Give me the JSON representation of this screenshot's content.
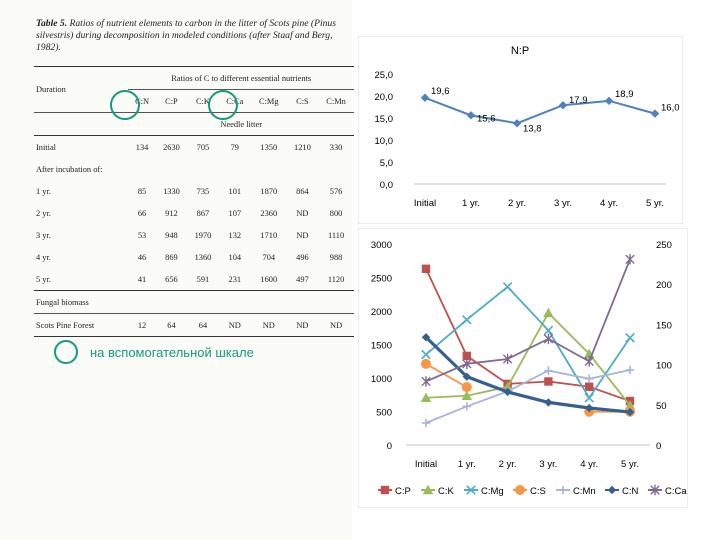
{
  "table": {
    "caption_label": "Table 5.",
    "caption_text": "Ratios of nutrient elements to carbon in the litter of Scots pine (Pinus silvestris) during decomposition in modeled conditions (after Staaf and Berg, 1982).",
    "duration_header": "Duration",
    "group_header": "Ratios of C to different essential nutrients",
    "columns": [
      "C:N",
      "C:P",
      "C:K",
      "C:Ca",
      "C:Mg",
      "C:S",
      "C:Mn"
    ],
    "section_needle": "Needle litter",
    "rows": [
      {
        "label": "Initial",
        "values": [
          "134",
          "2630",
          "705",
          "79",
          "1350",
          "1210",
          "330"
        ]
      },
      {
        "label": "After incubation of:",
        "values": []
      },
      {
        "label": "1 yr.",
        "values": [
          "85",
          "1330",
          "735",
          "101",
          "1870",
          "864",
          "576"
        ]
      },
      {
        "label": "2 yr.",
        "values": [
          "66",
          "912",
          "867",
          "107",
          "2360",
          "ND",
          "800"
        ]
      },
      {
        "label": "3 yr.",
        "values": [
          "53",
          "948",
          "1970",
          "132",
          "1710",
          "ND",
          "1110"
        ]
      },
      {
        "label": "4 yr.",
        "values": [
          "46",
          "869",
          "1360",
          "104",
          "704",
          "496",
          "988"
        ]
      },
      {
        "label": "5 yr.",
        "values": [
          "41",
          "656",
          "591",
          "231",
          "1600",
          "497",
          "1120"
        ]
      },
      {
        "label": "Fungal biomass",
        "values": []
      },
      {
        "label": "Scots Pine Forest",
        "values": [
          "12",
          "64",
          "64",
          "ND",
          "ND",
          "ND",
          "ND"
        ]
      }
    ],
    "note_text": "на вспомогательной шкале"
  },
  "colors": {
    "accent": "#129b7d"
  },
  "chart_data": [
    {
      "type": "line",
      "title": "N:P",
      "categories": [
        "Initial",
        "1 yr.",
        "2 yr.",
        "3 yr.",
        "4 yr.",
        "5 yr."
      ],
      "values": [
        19.6,
        15.6,
        13.8,
        17.9,
        18.9,
        16.0
      ],
      "data_labels": [
        "19,6",
        "15,6",
        "13,8",
        "17,9",
        "18,9",
        "16,0"
      ],
      "ylim": [
        0,
        25
      ],
      "yticks": [
        "0,0",
        "5,0",
        "10,0",
        "15,0",
        "20,0",
        "25,0"
      ],
      "color": "#4f81bd"
    },
    {
      "type": "line",
      "categories": [
        "Initial",
        "1 yr.",
        "2 yr.",
        "3 yr.",
        "4 yr.",
        "5 yr."
      ],
      "ylim_left": [
        0,
        3000
      ],
      "yticks_left": [
        "0",
        "500",
        "1000",
        "1500",
        "2000",
        "2500",
        "3000"
      ],
      "ylim_right": [
        0,
        250
      ],
      "yticks_right": [
        "0",
        "50",
        "100",
        "150",
        "200",
        "250"
      ],
      "legend_position": "bottom",
      "series": [
        {
          "name": "C:P",
          "axis": "left",
          "marker": "square",
          "color": "#c0504d",
          "values": [
            2630,
            1330,
            912,
            948,
            869,
            656
          ]
        },
        {
          "name": "C:K",
          "axis": "left",
          "marker": "triangle",
          "color": "#9bbb59",
          "values": [
            705,
            735,
            867,
            1970,
            1360,
            591
          ]
        },
        {
          "name": "C:Mg",
          "axis": "left",
          "marker": "x",
          "color": "#4bacc6",
          "values": [
            1350,
            1870,
            2360,
            1710,
            704,
            1600
          ]
        },
        {
          "name": "C:S",
          "axis": "left",
          "marker": "circle",
          "color": "#f79646",
          "values": [
            1210,
            864,
            null,
            null,
            496,
            497
          ]
        },
        {
          "name": "C:Mn",
          "axis": "left",
          "marker": "plus",
          "color": "#a5b6d9",
          "values": [
            330,
            576,
            800,
            1110,
            988,
            1120
          ]
        },
        {
          "name": "C:N",
          "axis": "right",
          "marker": "diamond",
          "color": "#365f91",
          "values": [
            134,
            85,
            66,
            53,
            46,
            41
          ]
        },
        {
          "name": "C:Ca",
          "axis": "right",
          "marker": "star",
          "color": "#7f6a93",
          "values": [
            79,
            101,
            107,
            132,
            104,
            231
          ]
        }
      ]
    }
  ]
}
